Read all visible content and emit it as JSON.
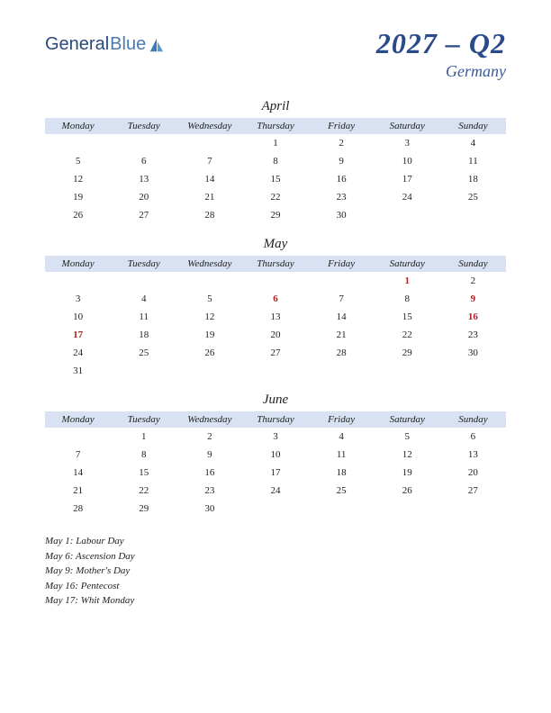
{
  "logo": {
    "text1": "General",
    "text2": "Blue"
  },
  "title": {
    "main": "2027 – Q2",
    "sub": "Germany"
  },
  "dayHeaders": [
    "Monday",
    "Tuesday",
    "Wednesday",
    "Thursday",
    "Friday",
    "Saturday",
    "Sunday"
  ],
  "colors": {
    "headerBg": "#d8e2f2",
    "titleColor": "#2a4a8a",
    "holidayColor": "#b02020",
    "textColor": "#222222",
    "background": "#ffffff"
  },
  "months": [
    {
      "name": "April",
      "weeks": [
        [
          "",
          "",
          "",
          "1",
          "2",
          "3",
          "4"
        ],
        [
          "5",
          "6",
          "7",
          "8",
          "9",
          "10",
          "11"
        ],
        [
          "12",
          "13",
          "14",
          "15",
          "16",
          "17",
          "18"
        ],
        [
          "19",
          "20",
          "21",
          "22",
          "23",
          "24",
          "25"
        ],
        [
          "26",
          "27",
          "28",
          "29",
          "30",
          "",
          ""
        ]
      ],
      "holidays": []
    },
    {
      "name": "May",
      "weeks": [
        [
          "",
          "",
          "",
          "",
          "",
          "1",
          "2"
        ],
        [
          "3",
          "4",
          "5",
          "6",
          "7",
          "8",
          "9"
        ],
        [
          "10",
          "11",
          "12",
          "13",
          "14",
          "15",
          "16"
        ],
        [
          "17",
          "18",
          "19",
          "20",
          "21",
          "22",
          "23"
        ],
        [
          "24",
          "25",
          "26",
          "27",
          "28",
          "29",
          "30"
        ],
        [
          "31",
          "",
          "",
          "",
          "",
          "",
          ""
        ]
      ],
      "holidays": [
        "1",
        "6",
        "9",
        "16",
        "17"
      ]
    },
    {
      "name": "June",
      "weeks": [
        [
          "",
          "1",
          "2",
          "3",
          "4",
          "5",
          "6"
        ],
        [
          "7",
          "8",
          "9",
          "10",
          "11",
          "12",
          "13"
        ],
        [
          "14",
          "15",
          "16",
          "17",
          "18",
          "19",
          "20"
        ],
        [
          "21",
          "22",
          "23",
          "24",
          "25",
          "26",
          "27"
        ],
        [
          "28",
          "29",
          "30",
          "",
          "",
          "",
          ""
        ]
      ],
      "holidays": []
    }
  ],
  "holidayList": [
    "May 1: Labour Day",
    "May 6: Ascension Day",
    "May 9: Mother's Day",
    "May 16: Pentecost",
    "May 17: Whit Monday"
  ]
}
